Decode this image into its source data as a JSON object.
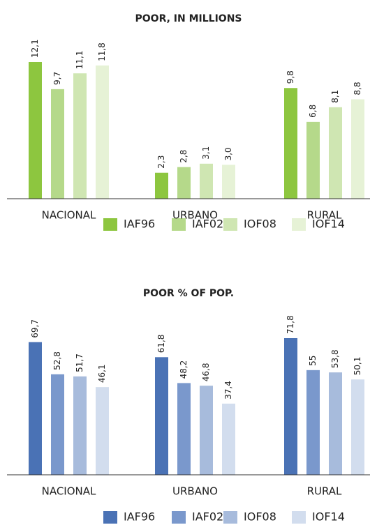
{
  "chart_data": [
    {
      "type": "bar",
      "title": "POOR, IN MILLIONS",
      "categories": [
        "NACIONAL",
        "URBANO",
        "RURAL"
      ],
      "series": [
        {
          "name": "IAF96",
          "color": "#8dc63f",
          "values": [
            12.1,
            2.3,
            9.8
          ],
          "value_labels": [
            "12,1",
            "2,3",
            "9,8"
          ]
        },
        {
          "name": "IAF02",
          "color": "#b5d98a",
          "values": [
            9.7,
            2.8,
            6.8
          ],
          "value_labels": [
            "9,7",
            "2,8",
            "6,8"
          ]
        },
        {
          "name": "IOF08",
          "color": "#cfe6b2",
          "values": [
            11.1,
            3.1,
            8.1
          ],
          "value_labels": [
            "11,1",
            "3,1",
            "8,1"
          ]
        },
        {
          "name": "IOF14",
          "color": "#e6f2d6",
          "values": [
            11.8,
            3.0,
            8.8
          ],
          "value_labels": [
            "11,8",
            "3,0",
            "8,8"
          ]
        }
      ]
    },
    {
      "type": "bar",
      "title": "POOR % OF POP.",
      "categories": [
        "NACIONAL",
        "URBANO",
        "RURAL"
      ],
      "series": [
        {
          "name": "IAF96",
          "color": "#4a72b5",
          "values": [
            69.7,
            61.8,
            71.8
          ],
          "value_labels": [
            "69,7",
            "61,8",
            "71,8"
          ]
        },
        {
          "name": "IAF02",
          "color": "#7a98cc",
          "values": [
            52.8,
            48.2,
            55
          ],
          "value_labels": [
            "52,8",
            "48,2",
            "55"
          ]
        },
        {
          "name": "IOF08",
          "color": "#a7bbdc",
          "values": [
            51.7,
            46.8,
            53.8
          ],
          "value_labels": [
            "51,7",
            "46,8",
            "53,8"
          ]
        },
        {
          "name": "IOF14",
          "color": "#d2ddee",
          "values": [
            46.1,
            37.4,
            50.1
          ],
          "value_labels": [
            "46,1",
            "37,4",
            "50,1"
          ]
        }
      ]
    }
  ]
}
